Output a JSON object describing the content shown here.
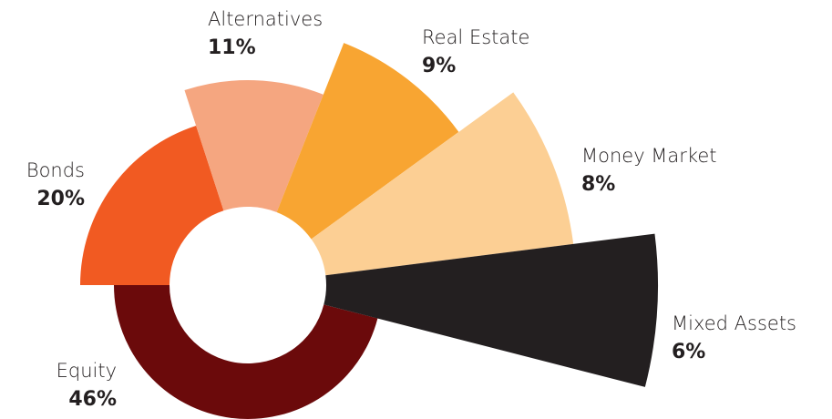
{
  "chart_data": {
    "type": "pie",
    "categories": [
      "Equity",
      "Bonds",
      "Alternatives",
      "Real Estate",
      "Money Market",
      "Mixed Assets"
    ],
    "values": [
      46,
      20,
      11,
      9,
      8,
      6
    ],
    "value_labels": [
      "46%",
      "20%",
      "11%",
      "9%",
      "8%",
      "6%"
    ],
    "colors": [
      "#6b0a0b",
      "#f15a22",
      "#f5a680",
      "#f8a532",
      "#fccf94",
      "#231f20"
    ]
  }
}
